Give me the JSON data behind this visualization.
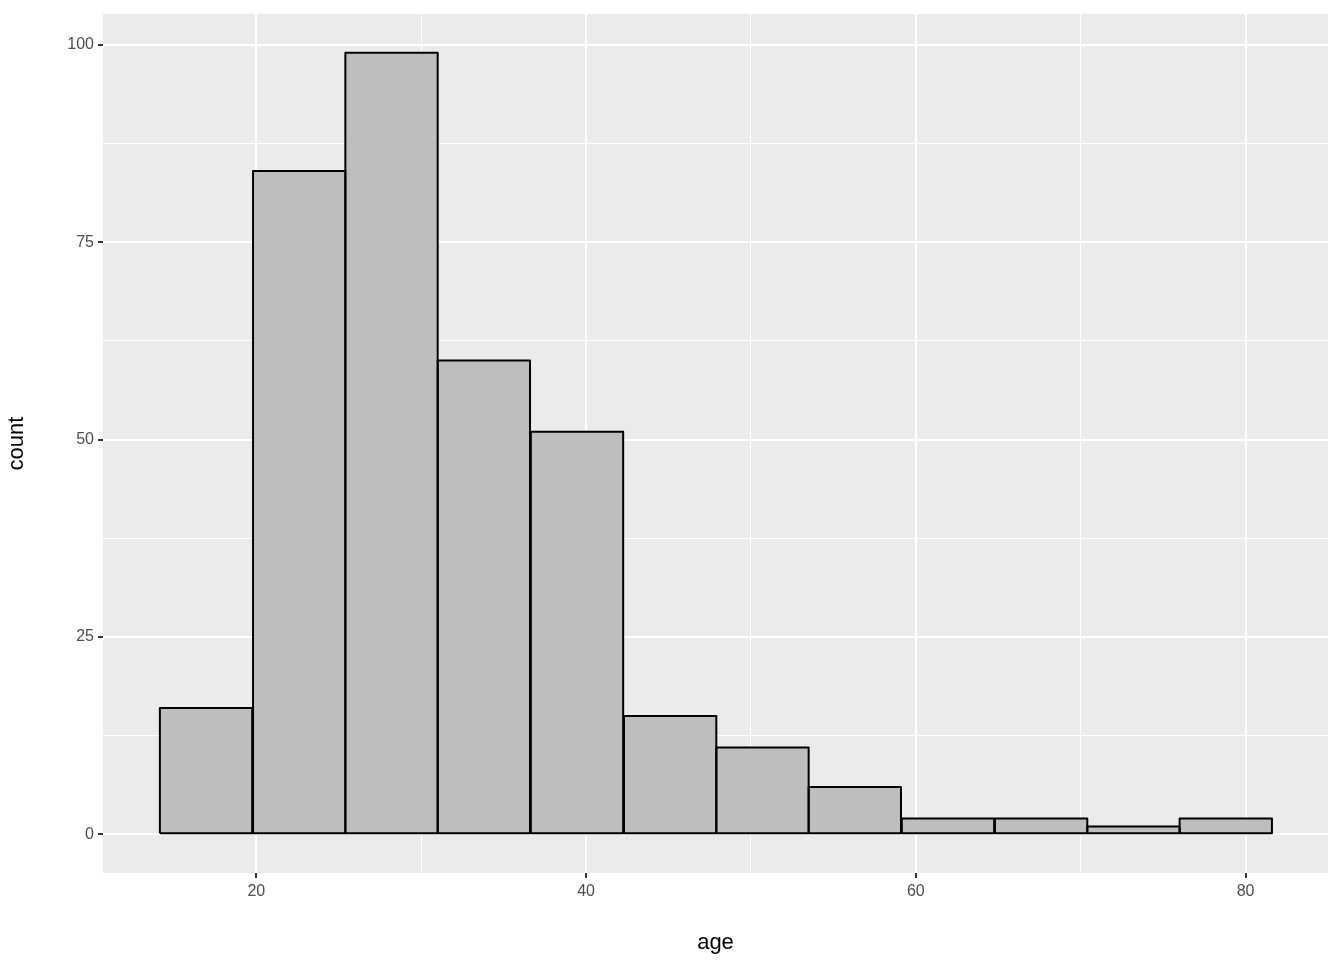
{
  "chart_data": {
    "type": "histogram",
    "xlabel": "age",
    "ylabel": "count",
    "bins": [
      14.1,
      19.8,
      25.4,
      31.0,
      36.6,
      42.3,
      47.9,
      53.5,
      59.1,
      64.8,
      70.4,
      76.0,
      81.6
    ],
    "values": [
      16,
      84,
      99,
      60,
      51,
      15,
      11,
      6,
      2,
      2,
      1,
      2
    ],
    "color": "#bebebe",
    "xlim": [
      10.7,
      85.0
    ],
    "xticks": [
      20,
      {
        "value": 30,
        "label": null
      },
      40,
      {
        "value": 50,
        "label": null
      },
      60,
      {
        "value": 70,
        "label": null
      },
      80
    ],
    "ylim": [
      -4.9,
      103.9
    ],
    "yticks": [
      0,
      {
        "value": 12.5,
        "label": null
      },
      25,
      {
        "value": 37.5,
        "label": null
      },
      50,
      {
        "value": 62.5,
        "label": null
      },
      75,
      {
        "value": 87.5,
        "label": null
      },
      100
    ],
    "grid": true
  }
}
